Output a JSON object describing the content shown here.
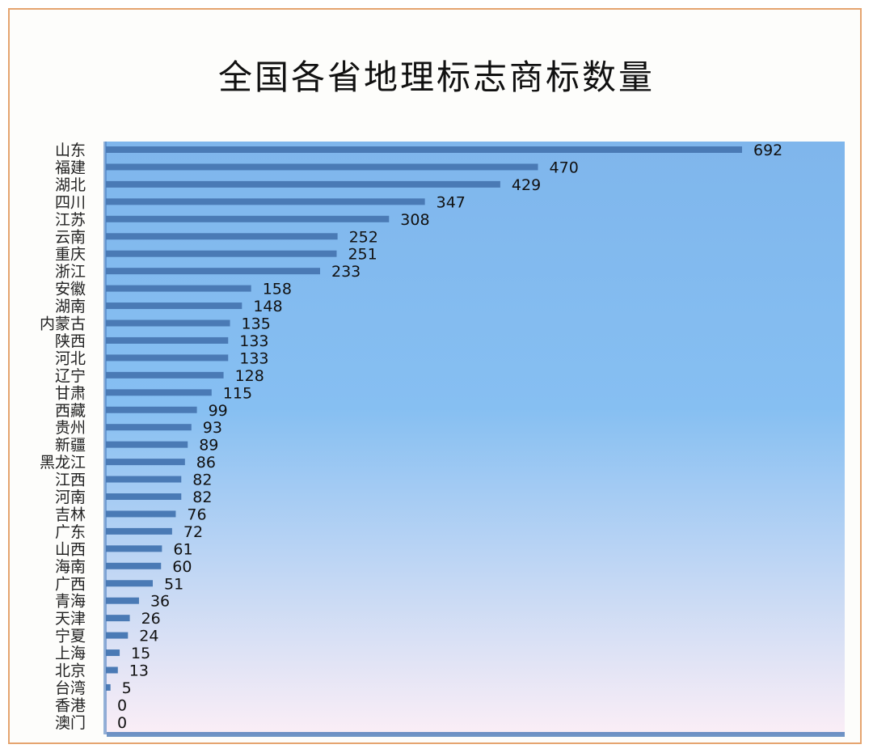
{
  "title": "全国各省地理标志商标数量",
  "colors": {
    "frame_border": "#e5a46f",
    "bar": "#4a7ab5",
    "plot_top": "#7fb6ec",
    "plot_bottom": "#fbeef6"
  },
  "chart_data": {
    "type": "bar",
    "orientation": "horizontal",
    "title": "全国各省地理标志商标数量",
    "xlabel": "",
    "ylabel": "",
    "xlim": [
      0,
      800
    ],
    "grid": false,
    "legend": "none",
    "data_labels": true,
    "categories": [
      "山东",
      "福建",
      "湖北",
      "四川",
      "江苏",
      "云南",
      "重庆",
      "浙江",
      "安徽",
      "湖南",
      "内蒙古",
      "陕西",
      "河北",
      "辽宁",
      "甘肃",
      "西藏",
      "贵州",
      "新疆",
      "黑龙江",
      "江西",
      "河南",
      "吉林",
      "广东",
      "山西",
      "海南",
      "广西",
      "青海",
      "天津",
      "宁夏",
      "上海",
      "北京",
      "台湾",
      "香港",
      "澳门"
    ],
    "values": [
      692,
      470,
      429,
      347,
      308,
      252,
      251,
      233,
      158,
      148,
      135,
      133,
      133,
      128,
      115,
      99,
      93,
      89,
      86,
      82,
      82,
      76,
      72,
      61,
      60,
      51,
      36,
      26,
      24,
      15,
      13,
      5,
      0,
      0
    ]
  }
}
